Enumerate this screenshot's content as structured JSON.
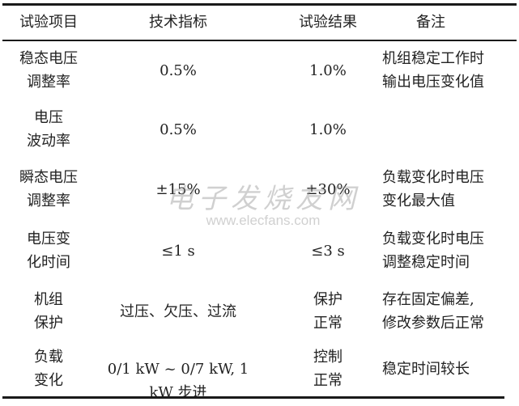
{
  "headers": [
    "试验项目",
    "技术指标",
    "试验结果",
    "备注"
  ],
  "rows": [
    {
      "item": [
        "稳态电压",
        "调整率"
      ],
      "spec": "0.5%",
      "result": [
        "1.0%"
      ],
      "note": [
        "机组稳定工作时",
        "输出电压变化值"
      ]
    },
    {
      "item": [
        "电压",
        "波动率"
      ],
      "spec": "0.5%",
      "result": [
        "1.0%"
      ],
      "note": []
    },
    {
      "item": [
        "瞬态电压",
        "调整率"
      ],
      "spec": "±15%",
      "result": [
        "±30%"
      ],
      "note": [
        "负载变化时电压",
        "变化最大值"
      ]
    },
    {
      "item": [
        "电压变",
        "化时间"
      ],
      "spec": "≤1 s",
      "result": [
        "≤3 s"
      ],
      "note": [
        "负载变化时电压",
        "调整稳定时间"
      ]
    },
    {
      "item": [
        "机组",
        "保护"
      ],
      "spec": "过压、欠压、过流",
      "result": [
        "保护",
        "正常"
      ],
      "note": [
        "存在固定偏差,",
        "修改参数后正常"
      ]
    },
    {
      "item": [
        "负载",
        "变化"
      ],
      "spec": "0/1 kW ~ 0/7 kW, 1 kW 步进",
      "result": [
        "控制",
        "正常"
      ],
      "note": [
        "稳定时间较长"
      ]
    }
  ],
  "watermark": {
    "cn": "电子发烧友网",
    "en": "www.elecfans.com"
  }
}
